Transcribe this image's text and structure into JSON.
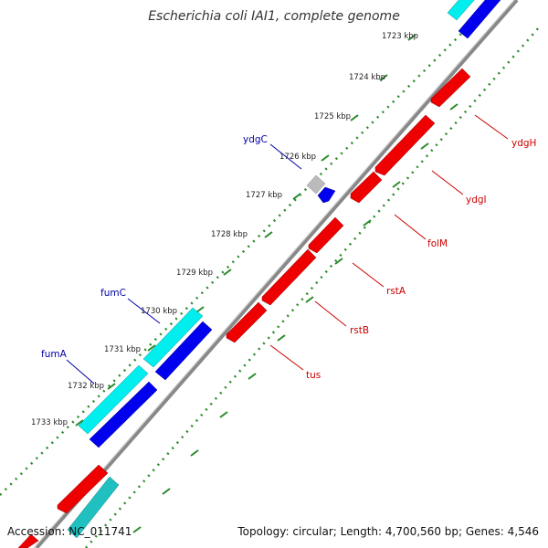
{
  "title": "Escherichia coli IAI1, complete genome",
  "footer": {
    "accession": "Accession: NC_011741",
    "summary": "Topology: circular; Length: 4,700,560 bp; Genes: 4,546"
  },
  "colors": {
    "forward_cds": "#0000ee",
    "forward_rna": "#00eeee",
    "reverse_cds": "#ee0000",
    "reverse_rna": "#20c0c0",
    "unknown": "#bbbbbb",
    "backbone": "#888888",
    "ticks": "#2a8a2a",
    "label_forward": "#0000aa",
    "label_reverse": "#cc0000"
  },
  "scale_labels": [
    "1723 kbp",
    "1724 kbp",
    "1725 kbp",
    "1726 kbp",
    "1727 kbp",
    "1728 kbp",
    "1729 kbp",
    "1730 kbp",
    "1731 kbp",
    "1732 kbp",
    "1733 kbp"
  ],
  "gene_labels_forward": [
    "ydgC",
    "fumC",
    "fumA"
  ],
  "gene_labels_reverse": [
    "ydgH",
    "ydgI",
    "folM",
    "rstA",
    "rstB",
    "tus"
  ]
}
